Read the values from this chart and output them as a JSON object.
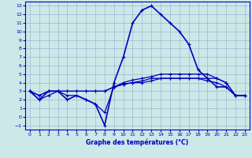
{
  "xlabel": "Graphe des températures (°C)",
  "background_color": "#cce8e8",
  "grid_color": "#99aacc",
  "line_color": "#0000bb",
  "xlim": [
    -0.5,
    23.5
  ],
  "ylim": [
    -1.5,
    13.5
  ],
  "xticks": [
    0,
    1,
    2,
    3,
    4,
    5,
    6,
    7,
    8,
    9,
    10,
    11,
    12,
    13,
    14,
    15,
    16,
    17,
    18,
    19,
    20,
    21,
    22,
    23
  ],
  "yticks": [
    -1,
    0,
    1,
    2,
    3,
    4,
    5,
    6,
    7,
    8,
    9,
    10,
    11,
    12,
    13
  ],
  "hours": [
    0,
    1,
    2,
    3,
    4,
    5,
    6,
    7,
    8,
    9,
    10,
    11,
    12,
    13,
    14,
    15,
    16,
    17,
    18,
    19,
    20,
    21,
    22,
    23
  ],
  "line_main": [
    3.0,
    2.0,
    3.0,
    3.0,
    2.0,
    2.5,
    2.0,
    1.5,
    -1.0,
    4.0,
    7.0,
    11.0,
    12.5,
    13.0,
    12.0,
    11.0,
    10.0,
    8.5,
    5.5,
    4.5,
    3.5,
    3.5,
    2.5,
    2.5
  ],
  "line_avg1": [
    3.0,
    2.5,
    3.0,
    3.0,
    3.0,
    3.0,
    3.0,
    3.0,
    3.0,
    3.5,
    4.0,
    4.3,
    4.5,
    4.7,
    5.0,
    5.0,
    5.0,
    5.0,
    5.0,
    5.0,
    4.5,
    4.0,
    2.5,
    2.5
  ],
  "line_avg2": [
    3.0,
    2.5,
    3.0,
    3.0,
    3.0,
    3.0,
    3.0,
    3.0,
    3.0,
    3.5,
    3.8,
    4.0,
    4.2,
    4.5,
    4.5,
    4.5,
    4.5,
    4.5,
    4.5,
    4.5,
    4.5,
    4.0,
    2.5,
    2.5
  ],
  "line_min": [
    3.0,
    2.0,
    2.5,
    3.0,
    2.5,
    2.5,
    2.0,
    1.5,
    0.5,
    3.5,
    3.8,
    4.0,
    4.0,
    4.2,
    4.5,
    4.5,
    4.5,
    4.5,
    4.5,
    4.2,
    4.0,
    3.5,
    2.5,
    2.5
  ]
}
